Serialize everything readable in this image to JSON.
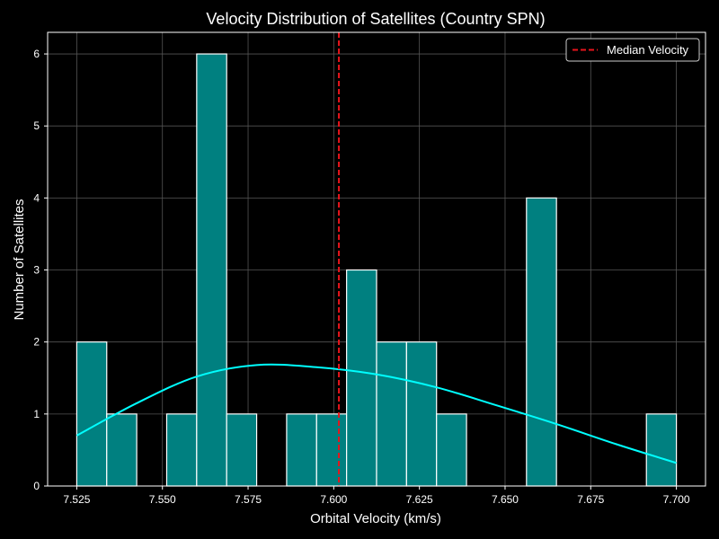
{
  "chart_data": {
    "type": "histogram",
    "title": "Velocity Distribution of Satellites (Country SPN)",
    "xlabel": "Orbital Velocity (km/s)",
    "ylabel": "Number of Satellites",
    "xlim": [
      7.5165,
      7.7085
    ],
    "ylim": [
      0,
      6.3
    ],
    "xticks": [
      "7.525",
      "7.550",
      "7.575",
      "7.600",
      "7.625",
      "7.650",
      "7.675",
      "7.700"
    ],
    "xtick_values": [
      7.525,
      7.55,
      7.575,
      7.6,
      7.625,
      7.65,
      7.675,
      7.7
    ],
    "yticks": [
      "0",
      "1",
      "2",
      "3",
      "4",
      "5",
      "6"
    ],
    "ytick_values": [
      0,
      1,
      2,
      3,
      4,
      5,
      6
    ],
    "grid": true,
    "bin_edges": [
      7.525,
      7.53375,
      7.5425,
      7.55125,
      7.56,
      7.56875,
      7.5775,
      7.58625,
      7.595,
      7.60375,
      7.6125,
      7.62125,
      7.63,
      7.63875,
      7.6475,
      7.65625,
      7.665,
      7.67375,
      7.6825,
      7.69125,
      7.7
    ],
    "counts": [
      2,
      1,
      0,
      1,
      6,
      1,
      0,
      1,
      1,
      3,
      2,
      2,
      1,
      0,
      0,
      4,
      0,
      0,
      0,
      1
    ],
    "kde": {
      "x": [
        7.525,
        7.5425,
        7.56,
        7.5775,
        7.595,
        7.6125,
        7.63,
        7.6475,
        7.665,
        7.6825,
        7.7
      ],
      "y": [
        0.7,
        1.15,
        1.52,
        1.68,
        1.65,
        1.55,
        1.37,
        1.12,
        0.86,
        0.58,
        0.32
      ]
    },
    "median": 7.6015,
    "legend": {
      "position": "top-right",
      "label": "Median Velocity"
    },
    "colors": {
      "bar_fill": "#008080",
      "bar_edge": "#ffffff",
      "kde_line": "#00ffff",
      "median_line": "#e8141b",
      "grid": "#555555",
      "background": "#000000"
    }
  }
}
